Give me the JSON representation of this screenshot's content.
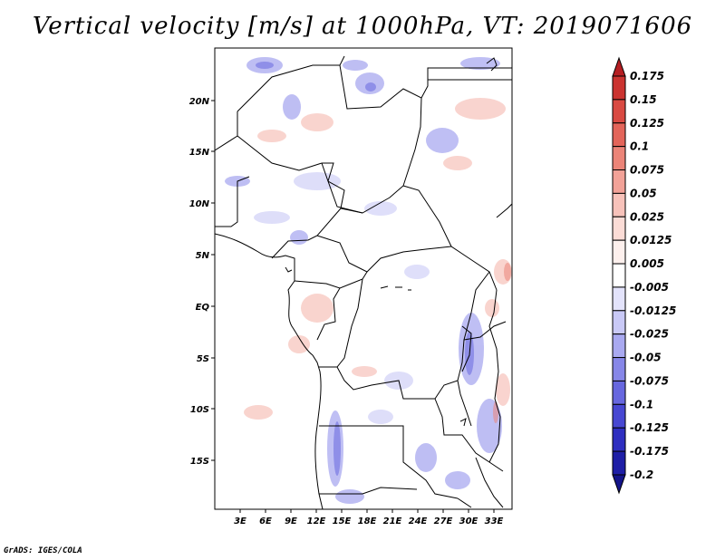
{
  "title": "Vertical velocity [m/s] at 1000hPa, VT: 2019071606",
  "credit": "GrADS: IGES/COLA",
  "map": {
    "lat_labels": [
      "20N",
      "15N",
      "10N",
      "5N",
      "EQ",
      "5S",
      "10S",
      "15S"
    ],
    "lon_labels": [
      "3E",
      "6E",
      "9E",
      "12E",
      "15E",
      "18E",
      "21E",
      "24E",
      "27E",
      "30E",
      "33E"
    ]
  },
  "colorbar": {
    "labels": [
      "0.175",
      "0.15",
      "0.125",
      "0.1",
      "0.075",
      "0.05",
      "0.025",
      "0.0125",
      "0.005",
      "-0.005",
      "-0.0125",
      "-0.025",
      "-0.05",
      "-0.075",
      "-0.1",
      "-0.125",
      "-0.175",
      "-0.2"
    ],
    "colors": [
      "#b51e22",
      "#cb3330",
      "#d94a42",
      "#e3655a",
      "#eb8478",
      "#f2a298",
      "#f7c2ba",
      "#fbdcd6",
      "#fdf0ed",
      "#ffffff",
      "#e3e3fb",
      "#c9c9f6",
      "#a9a9f0",
      "#8787e8",
      "#6767df",
      "#4747d2",
      "#2e2ec0",
      "#1e1ea6",
      "#14148a"
    ]
  }
}
